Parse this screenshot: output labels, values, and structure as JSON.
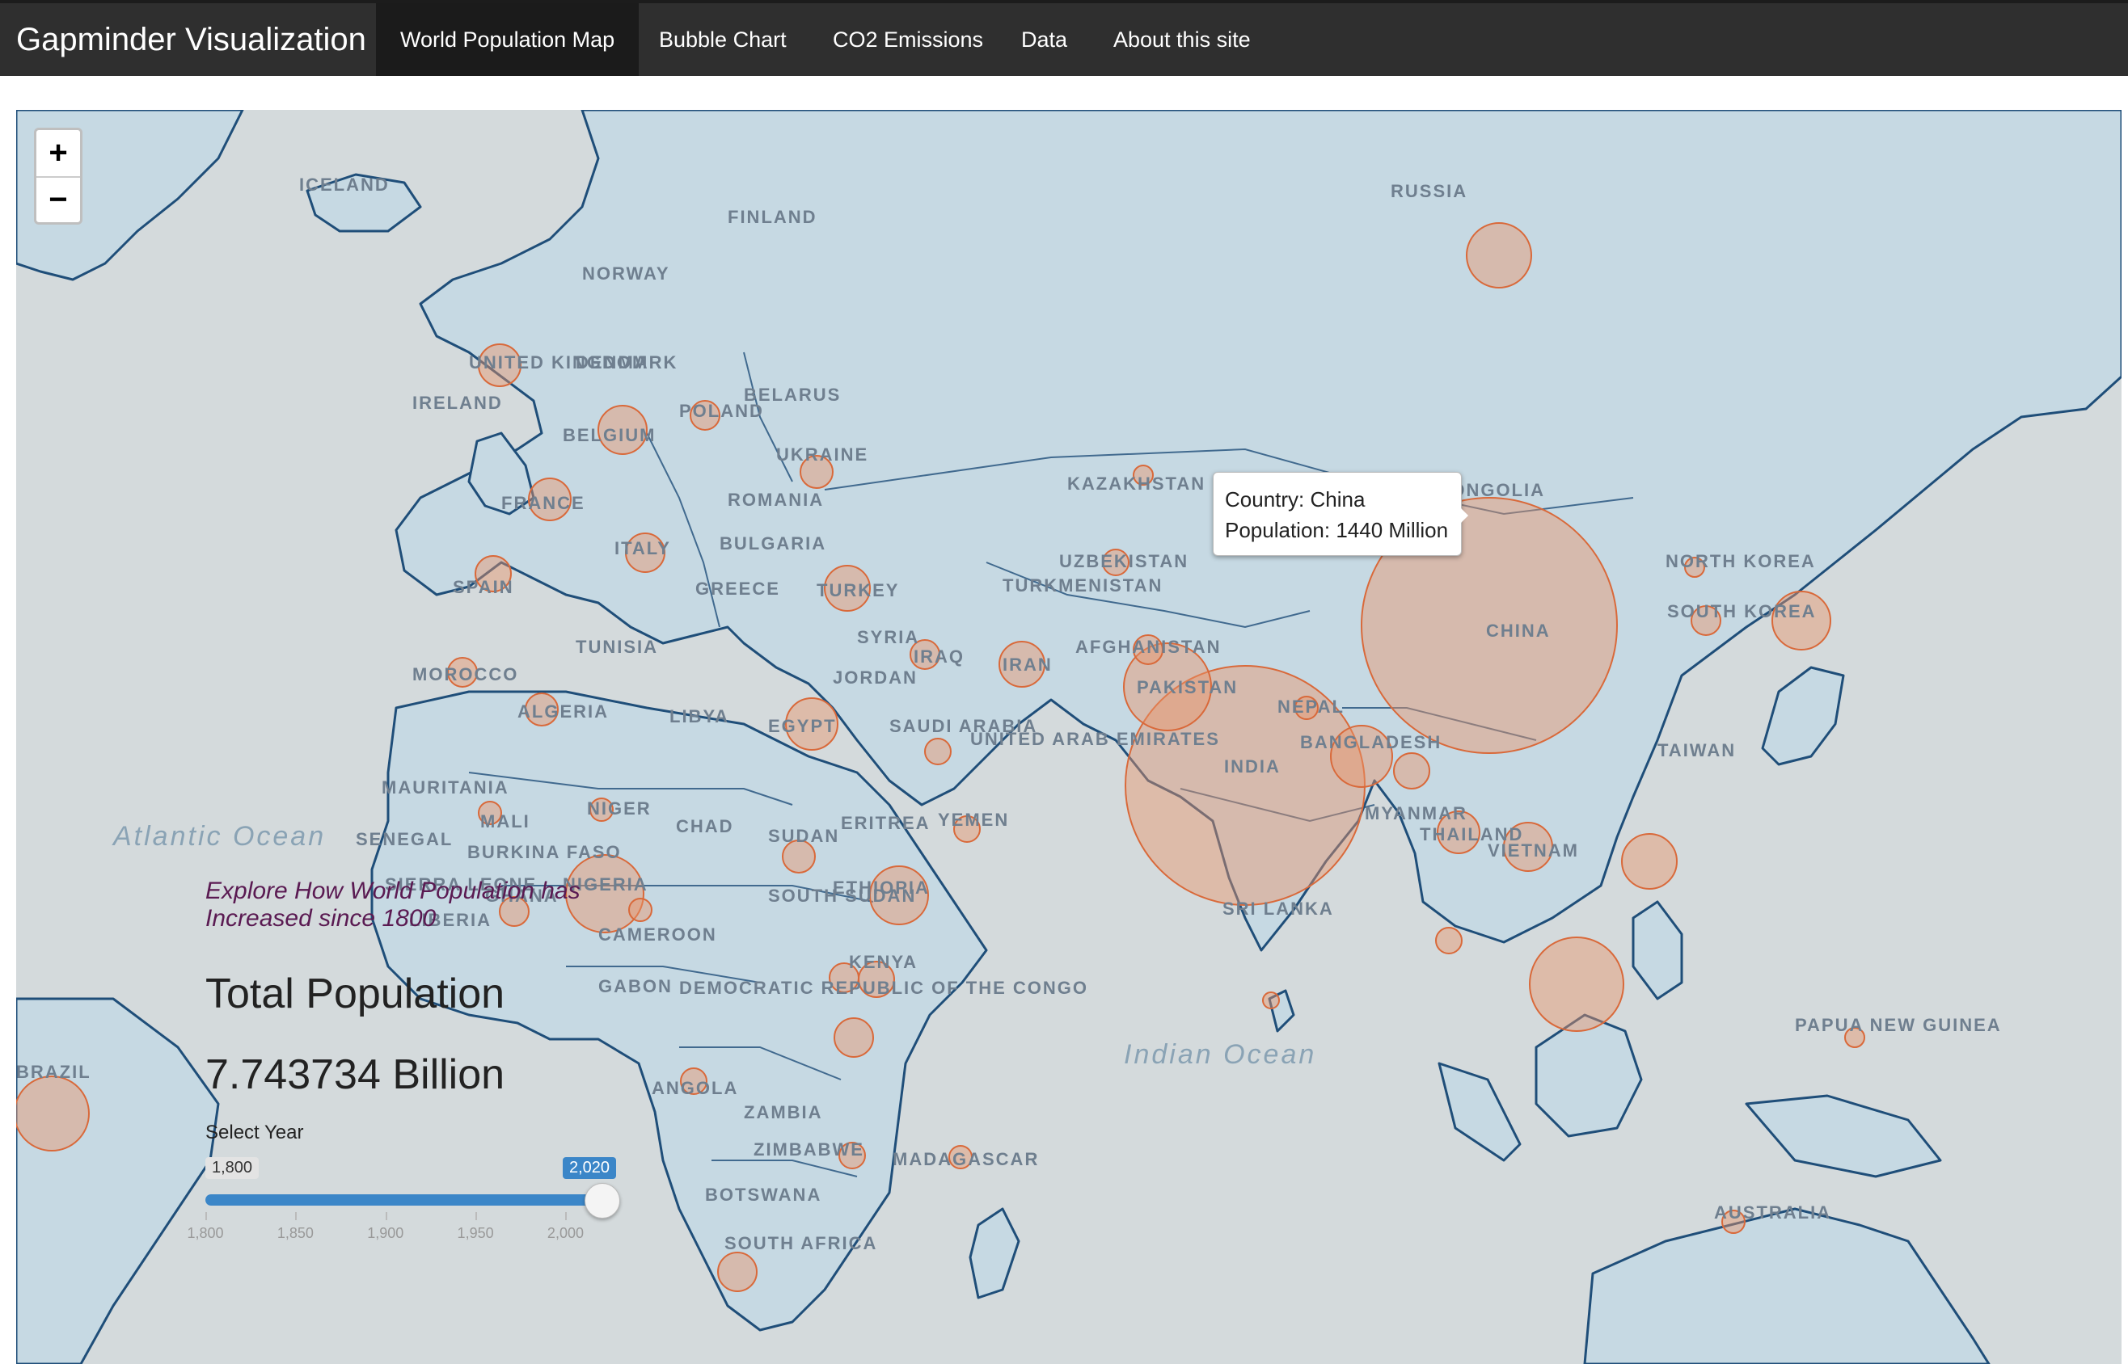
{
  "navbar": {
    "brand": "Gapminder Visualization",
    "tabs": [
      {
        "label": "World Population Map",
        "active": true
      },
      {
        "label": "Bubble Chart"
      },
      {
        "label": "CO2 Emissions"
      },
      {
        "label": "Data"
      },
      {
        "label": "About this site"
      }
    ]
  },
  "map": {
    "zoom_in": "+",
    "zoom_out": "−",
    "countries": [
      "RUSSIA",
      "ICELAND",
      "FINLAND",
      "NORWAY",
      "DENMARK",
      "UNITED KINGDOM",
      "IRELAND",
      "BELGIUM",
      "POLAND",
      "BELARUS",
      "UKRAINE",
      "FRANCE",
      "ROMANIA",
      "BULGARIA",
      "ITALY",
      "SPAIN",
      "GREECE",
      "TURKEY",
      "SYRIA",
      "IRAQ",
      "IRAN",
      "TUNISIA",
      "MOROCCO",
      "ALGERIA",
      "LIBYA",
      "EGYPT",
      "JORDAN",
      "SAUDI ARABIA",
      "UNITED ARAB EMIRATES",
      "KAZAKHSTAN",
      "UZBEKISTAN",
      "TURKMENISTAN",
      "AFGHANISTAN",
      "PAKISTAN",
      "NEPAL",
      "INDIA",
      "BANGLADESH",
      "MONGOLIA",
      "CHINA",
      "NORTH KOREA",
      "SOUTH KOREA",
      "TAIWAN",
      "MYANMAR",
      "THAILAND",
      "VIETNAM",
      "SRI LANKA",
      "MAURITANIA",
      "MALI",
      "NIGER",
      "CHAD",
      "SUDAN",
      "ERITREA",
      "YEMEN",
      "SENEGAL",
      "BURKINA FASO",
      "SIERRA LEONE",
      "LIBERIA",
      "GHANA",
      "NIGERIA",
      "CAMEROON",
      "SOUTH SUDAN",
      "ETHIOPIA",
      "KENYA",
      "GABON",
      "DEMOCRATIC REPUBLIC OF THE CONGO",
      "ANGOLA",
      "ZAMBIA",
      "ZIMBABWE",
      "MADAGASCAR",
      "BOTSWANA",
      "SOUTH AFRICA",
      "PAPUA NEW GUINEA",
      "AUSTRALIA",
      "BRAZIL"
    ],
    "oceans": [
      {
        "name": "Atlantic Ocean"
      },
      {
        "name": "Indian Ocean"
      }
    ],
    "bubble_color": "#e8956b",
    "land_color": "#c6d9e3",
    "border_color": "#1f4e79",
    "water_color": "#d4dadc"
  },
  "tooltip": {
    "country_line": "Country: China",
    "population_line": "Population: 1440 Million"
  },
  "sidebar": {
    "tagline": "Explore How World Population has Increased since 1800",
    "total_label": "Total Population",
    "total_value": "7.743734 Billion",
    "select_label": "Select Year"
  },
  "slider": {
    "min": 1800,
    "max": 2020,
    "value": 2020,
    "min_label": "1,800",
    "max_label": "2,020",
    "tick_labels": [
      "1,800",
      "1,850",
      "1,900",
      "1,950",
      "2,000"
    ],
    "tick_values": [
      1800,
      1850,
      1900,
      1950,
      2000
    ]
  },
  "bubbles": [
    {
      "country": "China",
      "population_m": 1440
    },
    {
      "country": "India",
      "population_m": 1380
    },
    {
      "country": "Pakistan",
      "population_m": 220
    },
    {
      "country": "Nigeria",
      "population_m": 206
    },
    {
      "country": "Bangladesh",
      "population_m": 165
    },
    {
      "country": "Russia",
      "population_m": 146
    },
    {
      "country": "Japan",
      "population_m": 126
    },
    {
      "country": "Ethiopia",
      "population_m": 115
    },
    {
      "country": "Philippines",
      "population_m": 110
    },
    {
      "country": "Egypt",
      "population_m": 102
    },
    {
      "country": "Vietnam",
      "population_m": 97
    },
    {
      "country": "Indonesia",
      "population_m": 274
    },
    {
      "country": "Brazil",
      "population_m": 213
    }
  ]
}
